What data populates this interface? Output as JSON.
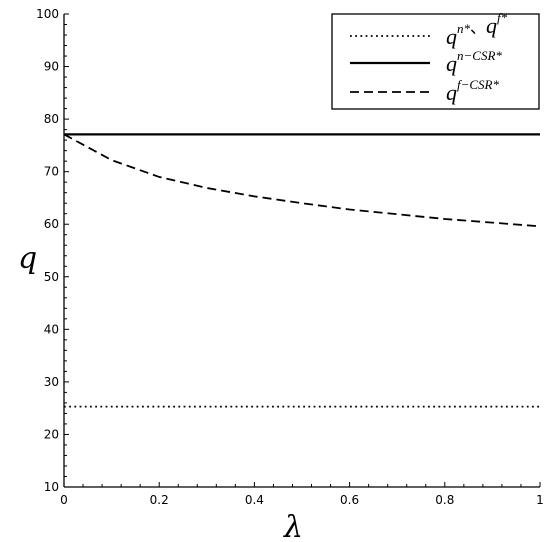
{
  "chart_data": {
    "type": "line",
    "xlabel": "λ",
    "ylabel": "q",
    "xlim": [
      0,
      1
    ],
    "ylim": [
      10,
      100
    ],
    "xticks": [
      "0",
      "0.2",
      "0.4",
      "0.6",
      "0.8",
      "1"
    ],
    "yticks": [
      "10",
      "20",
      "30",
      "40",
      "50",
      "60",
      "70",
      "80",
      "90",
      "100"
    ],
    "legend_position": "top-right",
    "x": [
      0,
      0.1,
      0.2,
      0.3,
      0.4,
      0.5,
      0.6,
      0.7,
      0.8,
      0.9,
      1.0
    ],
    "series": [
      {
        "legend": {
          "base": "q",
          "sup": "n*",
          "sep": "、",
          "base2": "q",
          "sup2": "f*"
        },
        "style": "dotted",
        "values": [
          25.3,
          25.3,
          25.3,
          25.3,
          25.3,
          25.3,
          25.3,
          25.3,
          25.3,
          25.3,
          25.3
        ]
      },
      {
        "legend": {
          "base": "q",
          "sup": "n−CSR*"
        },
        "style": "solid",
        "values": [
          77.1,
          77.1,
          77.1,
          77.1,
          77.1,
          77.1,
          77.1,
          77.1,
          77.1,
          77.1,
          77.1
        ]
      },
      {
        "legend": {
          "base": "q",
          "sup": "f−CSR*"
        },
        "style": "dashed",
        "values": [
          77.1,
          72.2,
          69.0,
          66.9,
          65.3,
          64.0,
          62.8,
          61.9,
          61.0,
          60.3,
          59.6
        ]
      }
    ]
  }
}
